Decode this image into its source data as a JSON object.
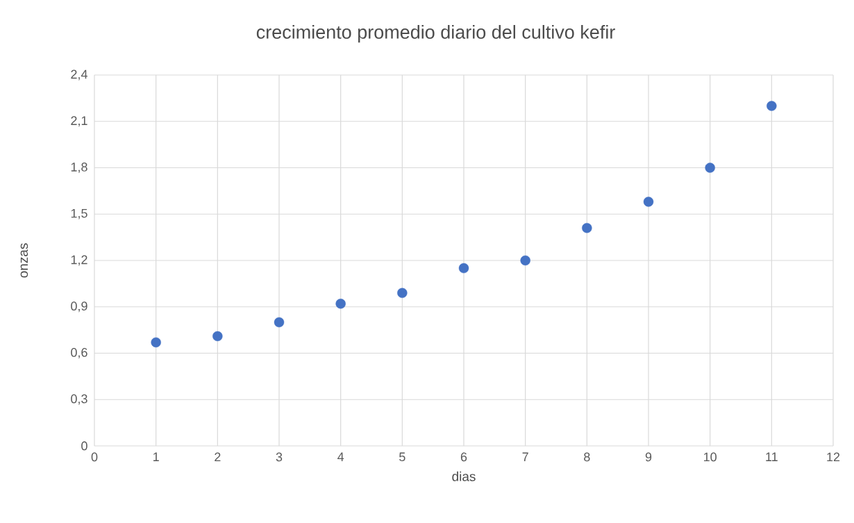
{
  "chart_data": {
    "type": "scatter",
    "title": "crecimiento promedio diario del cultivo kefir",
    "xlabel": "dias",
    "ylabel": "onzas",
    "x": [
      1,
      2,
      3,
      4,
      5,
      6,
      7,
      8,
      9,
      10,
      11
    ],
    "series": [
      {
        "color": "#4472c4",
        "values": [
          0.67,
          0.71,
          0.8,
          0.92,
          0.99,
          1.15,
          1.2,
          1.41,
          1.58,
          1.8,
          2.2
        ]
      }
    ],
    "xlim": [
      0,
      12
    ],
    "xticks": [
      0,
      1,
      2,
      3,
      4,
      5,
      6,
      7,
      8,
      9,
      10,
      11,
      12
    ],
    "ylim": [
      0,
      2.4
    ],
    "yticks": [
      {
        "value": 0,
        "label": "0"
      },
      {
        "value": 0.3,
        "label": "0,3"
      },
      {
        "value": 0.6,
        "label": "0,6"
      },
      {
        "value": 0.9,
        "label": "0,9"
      },
      {
        "value": 1.2,
        "label": "1,2"
      },
      {
        "value": 1.5,
        "label": "1,5"
      },
      {
        "value": 1.8,
        "label": "1,8"
      },
      {
        "value": 2.1,
        "label": "2,1"
      },
      {
        "value": 2.4,
        "label": "2,4"
      }
    ],
    "grid": true,
    "marker": "circle"
  }
}
